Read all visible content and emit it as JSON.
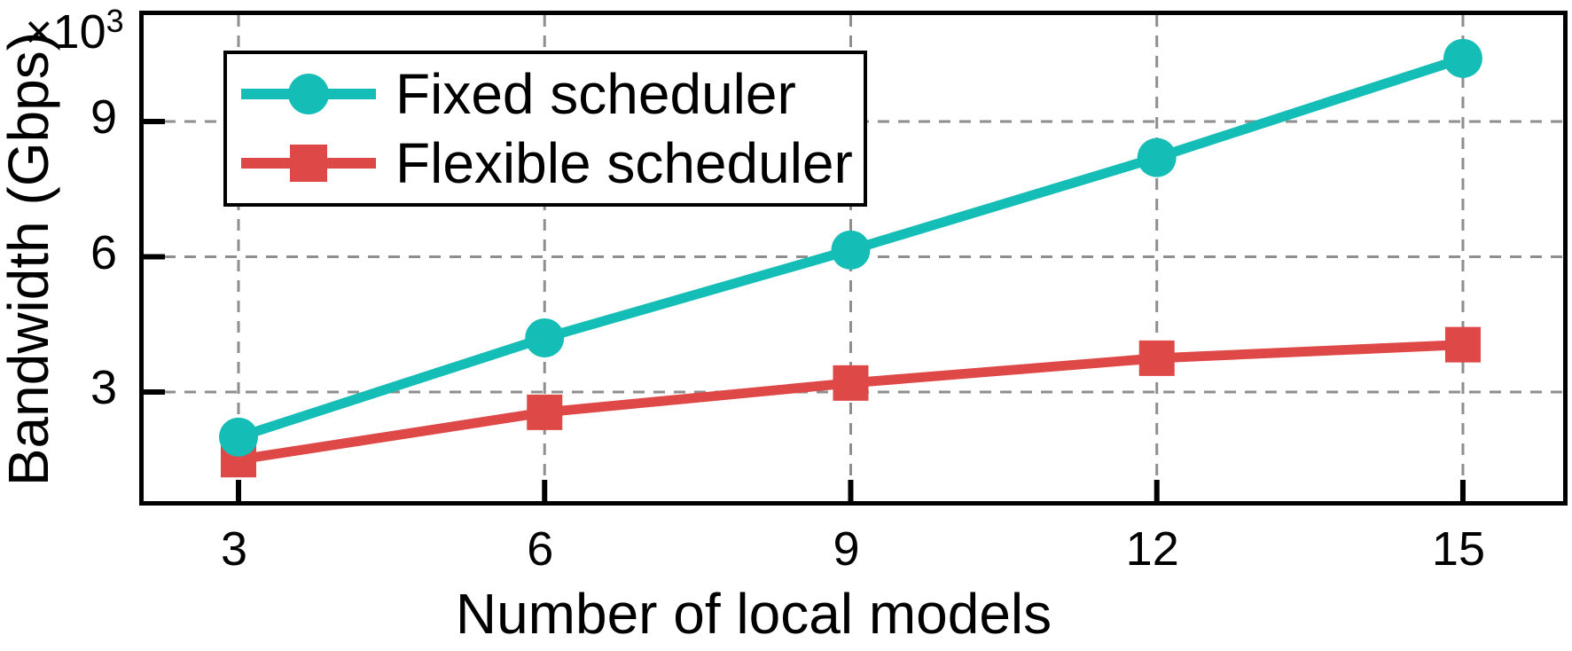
{
  "figure": {
    "y_multiplier_base": "×10",
    "y_multiplier_exp": "3"
  },
  "chart_data": {
    "type": "line",
    "title": "",
    "xlabel": "Number of local models",
    "ylabel": "Bandwidth (Gbps)",
    "y_unit_multiplier": "×10^3",
    "x": [
      3,
      6,
      9,
      12,
      15
    ],
    "series": [
      {
        "name": "Fixed scheduler",
        "marker": "circle",
        "color": "#14BDB6",
        "values": [
          2.0,
          4.2,
          6.15,
          8.2,
          10.4
        ]
      },
      {
        "name": "Flexible scheduler",
        "marker": "square",
        "color": "#DE4846",
        "values": [
          1.5,
          2.55,
          3.2,
          3.75,
          4.05
        ]
      }
    ],
    "xticks": [
      3,
      6,
      9,
      12,
      15
    ],
    "yticks": [
      3,
      6,
      9
    ],
    "xlim": [
      2.05,
      16.0
    ],
    "ylim": [
      0.48,
      11.45
    ],
    "grid": true,
    "grid_style": "dashed",
    "grid_color": "#8E8E8E",
    "legend_position": "upper-left",
    "axis_color": "#000000"
  },
  "legend": {
    "items": [
      {
        "label": "Fixed scheduler",
        "marker": "circle",
        "color": "#14BDB6"
      },
      {
        "label": "Flexible scheduler",
        "marker": "square",
        "color": "#DE4846"
      }
    ]
  }
}
